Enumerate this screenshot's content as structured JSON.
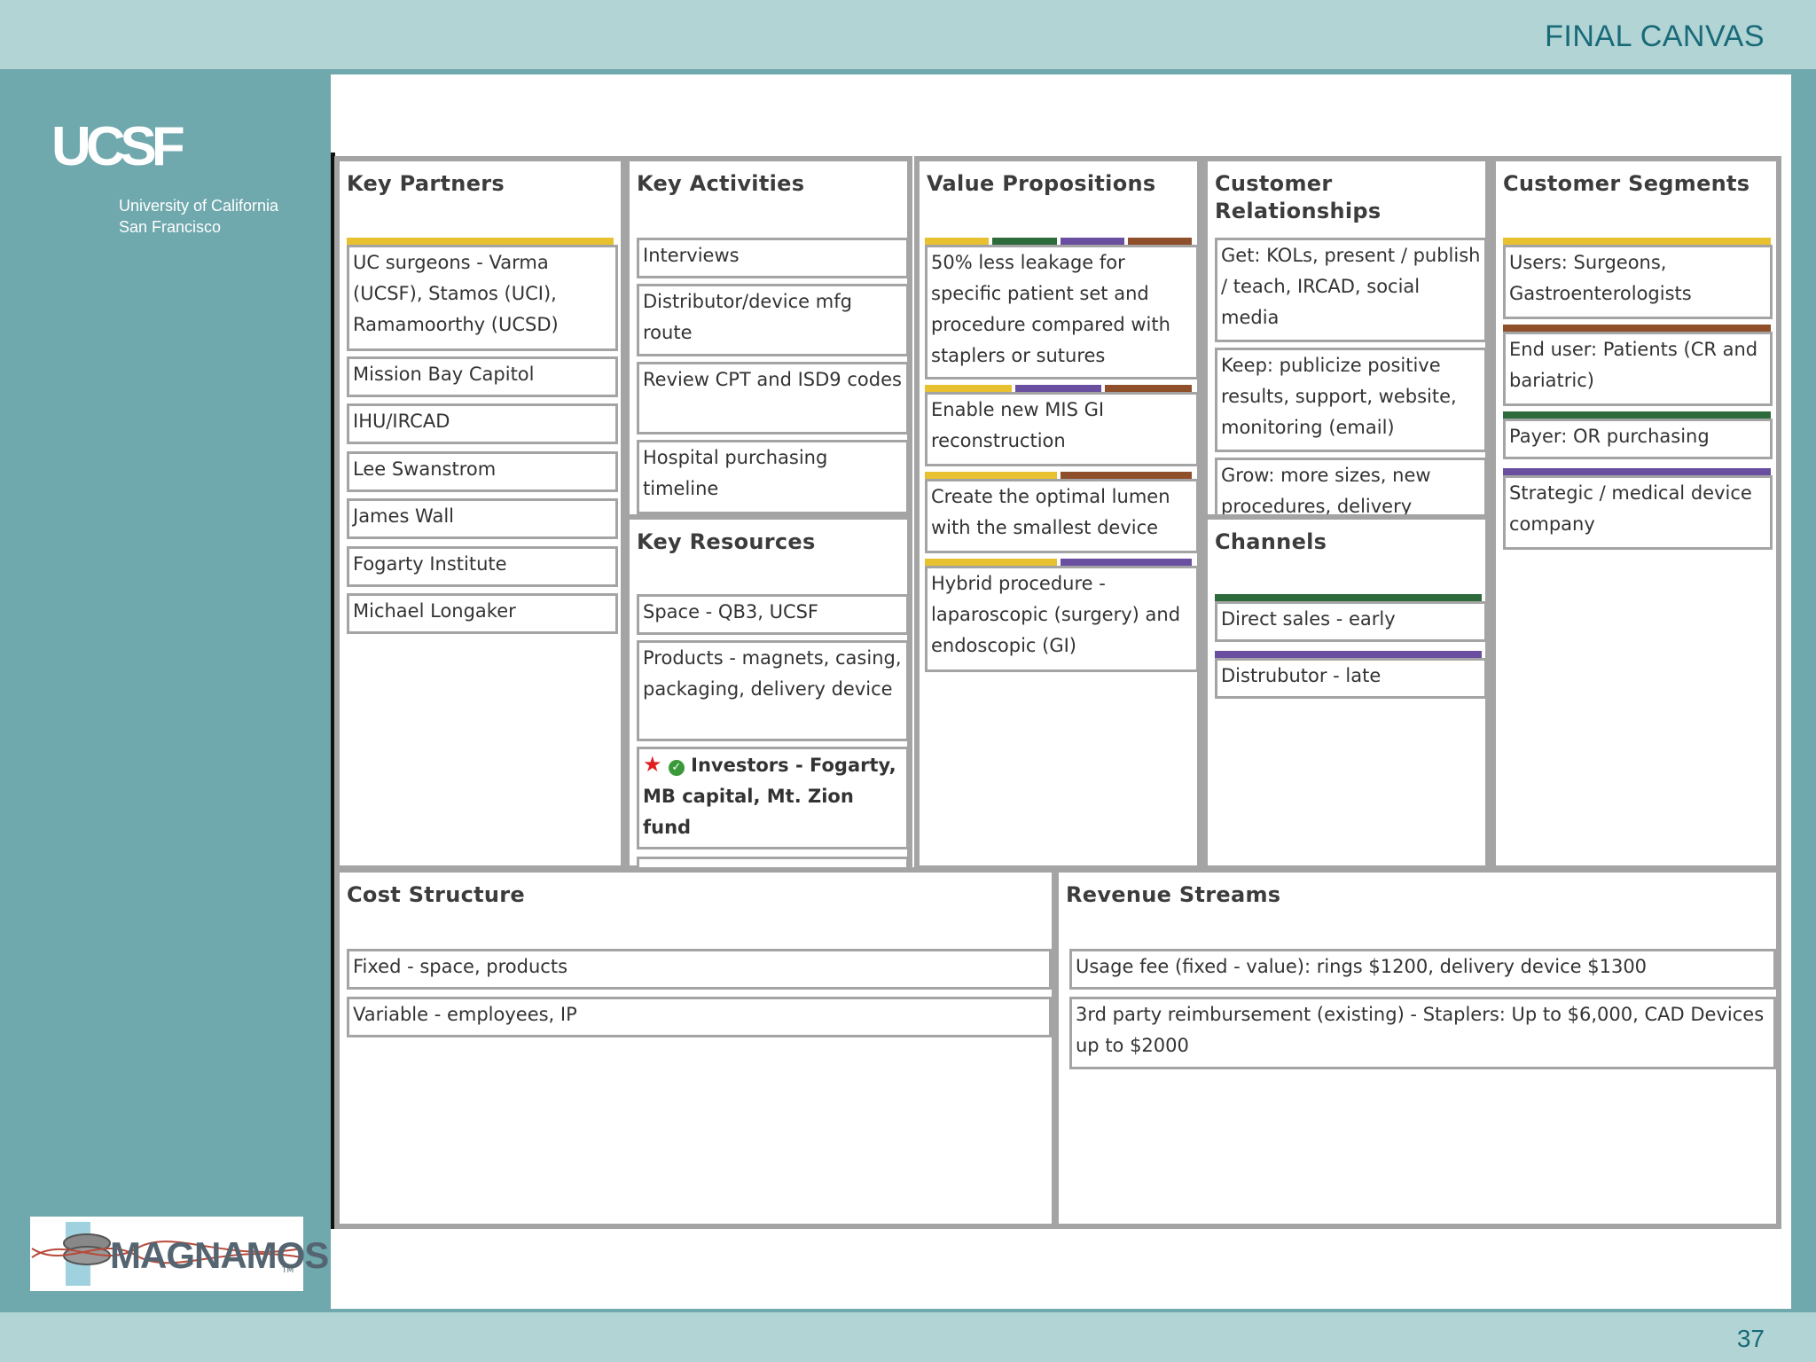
{
  "header": {
    "title": "FINAL CANVAS"
  },
  "footer": {
    "page_number": "37"
  },
  "sidebar": {
    "logo_ucsf": "UCSF",
    "univ_line1": "University of California",
    "univ_line2": "San Francisco",
    "company_logo": "MAGNAMOSIS",
    "company_tm": "TM"
  },
  "colors": {
    "yellow": "#e7c130",
    "green": "#2e6b3c",
    "purple": "#6a4fa0",
    "brown": "#8f4f2a"
  },
  "canvas": {
    "key_partners": {
      "title": "Key Partners",
      "items": [
        "UC surgeons - Varma (UCSF), Stamos (UCI), Ramamoorthy (UCSD)",
        "Mission Bay Capitol",
        "IHU/IRCAD",
        "Lee Swanstrom",
        "James Wall",
        "Fogarty Institute",
        "Michael Longaker"
      ]
    },
    "key_activities": {
      "title": "Key Activities",
      "items": [
        "Interviews",
        "Distributor/device mfg route",
        "Review CPT and ISD9 codes",
        "Hospital purchasing timeline"
      ]
    },
    "key_resources": {
      "title": "Key Resources",
      "items": [
        "Space - QB3, UCSF",
        "Products - magnets, casing, packaging, delivery device",
        "Investors - Fogarty, MB capital, Mt. Zion fund"
      ]
    },
    "value_propositions": {
      "title": "Value Propositions",
      "items": [
        "50% less leakage for specific patient set and procedure compared with staplers or sutures",
        "Enable new MIS GI reconstruction",
        "Create the optimal lumen with the smallest device",
        "Hybrid procedure - laparoscopic (surgery) and endoscopic (GI)"
      ]
    },
    "customer_relationships": {
      "title": "Customer Relationships",
      "items": [
        "Get: KOLs, present / publish / teach, IRCAD, social media",
        "Keep: publicize positive results, support, website, monitoring (email)",
        "Grow: more sizes, new procedures, delivery"
      ]
    },
    "channels": {
      "title": "Channels",
      "items": [
        "Direct sales - early",
        "Distrubutor - late"
      ]
    },
    "customer_segments": {
      "title": "Customer Segments",
      "items": [
        "Users: Surgeons, Gastroenterologists",
        "End user: Patients (CR and bariatric)",
        "Payer: OR purchasing",
        "Strategic / medical device company"
      ]
    },
    "cost_structure": {
      "title": "Cost Structure",
      "items": [
        "Fixed - space, products",
        "Variable - employees, IP"
      ]
    },
    "revenue_streams": {
      "title": "Revenue Streams",
      "items": [
        "Usage fee (fixed - value): rings $1200, delivery device $1300",
        "3rd party reimbursement (existing) - Staplers: Up to $6,000, CAD Devices up to $2000"
      ]
    }
  }
}
